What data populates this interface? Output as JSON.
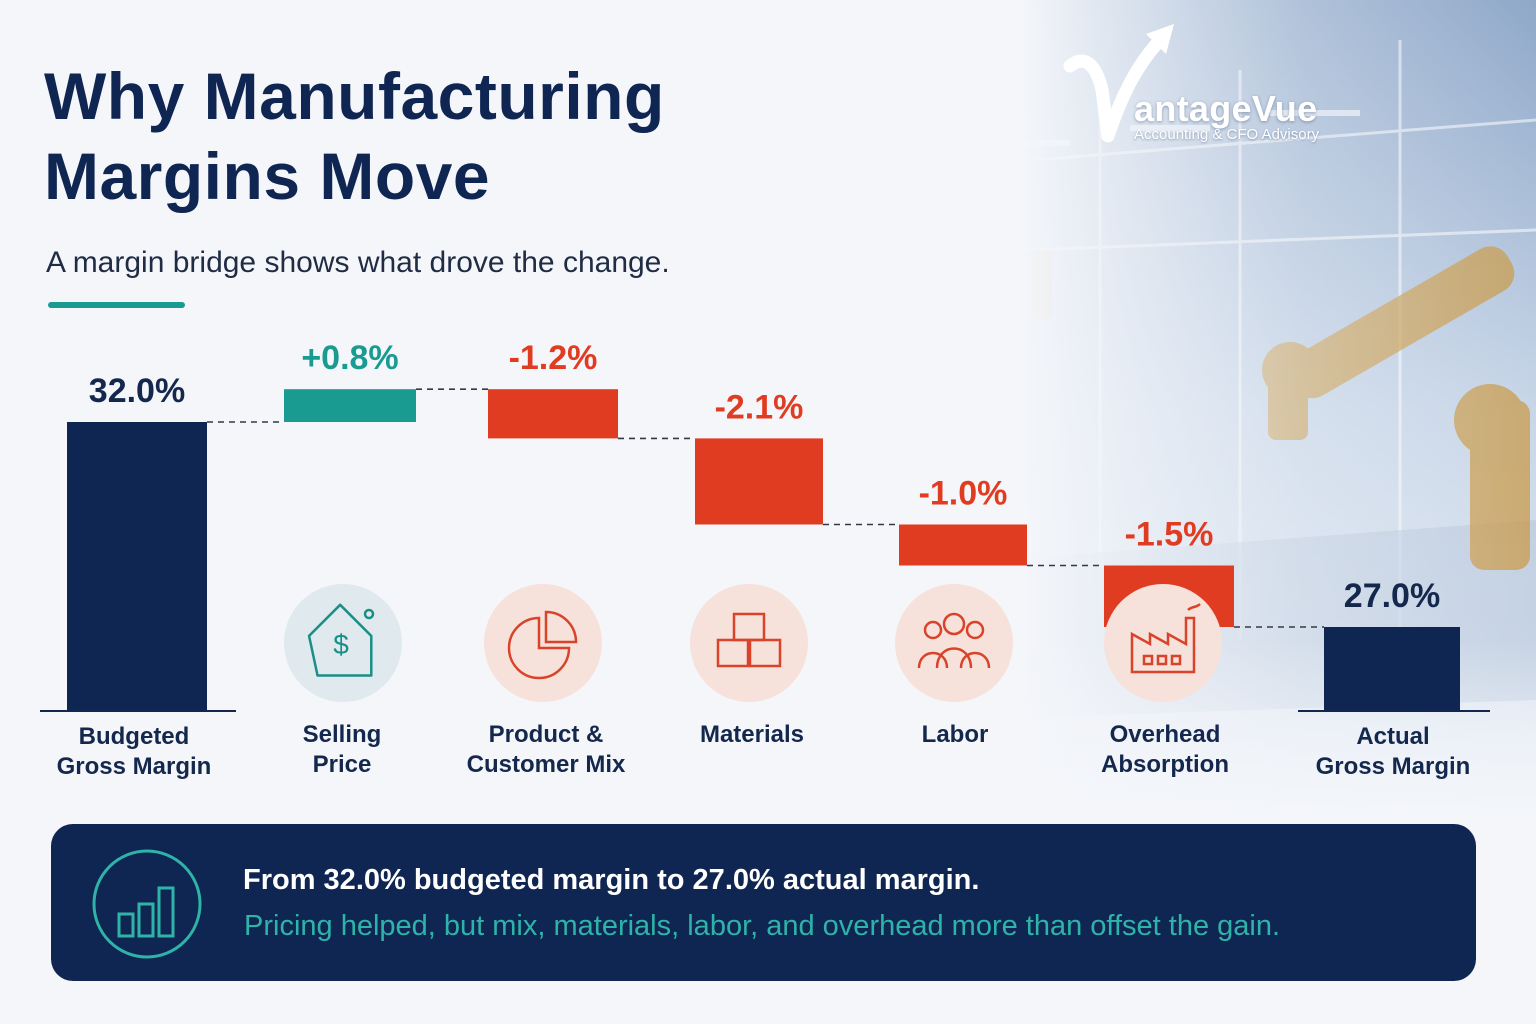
{
  "header": {
    "title_line1": "Why Manufacturing",
    "title_line2": "Margins Move",
    "subtitle": "A margin bridge shows what drove the change."
  },
  "brand": {
    "name": "antageVue",
    "tagline": "Accounting & CFO Advisory",
    "logo_lettering": "V"
  },
  "colors": {
    "navy": "#0f2552",
    "teal": "#1a9b92",
    "red": "#e03c22"
  },
  "chart_data": {
    "type": "waterfall",
    "unit": "%",
    "title": "",
    "ylim": [
      0,
      33
    ],
    "categories": [
      "Budgeted\nGross Margin",
      "Selling\nPrice",
      "Product &\nCustomer Mix",
      "Materials",
      "Labor",
      "Overhead\nAbsorption",
      "Actual\nGross Margin"
    ],
    "steps": [
      {
        "kind": "total",
        "value": 32.0,
        "label": "32.0%",
        "color": "#0f2552",
        "icon": ""
      },
      {
        "kind": "delta",
        "value": 0.8,
        "label": "+0.8%",
        "color": "#1a9b92",
        "icon": "price-tag-icon"
      },
      {
        "kind": "delta",
        "value": -1.2,
        "label": "-1.2%",
        "color": "#e03c22",
        "icon": "pie-chart-icon"
      },
      {
        "kind": "delta",
        "value": -2.1,
        "label": "-2.1%",
        "color": "#e03c22",
        "icon": "boxes-icon"
      },
      {
        "kind": "delta",
        "value": -1.0,
        "label": "-1.0%",
        "color": "#e03c22",
        "icon": "people-icon"
      },
      {
        "kind": "delta",
        "value": -1.5,
        "label": "-1.5%",
        "color": "#e03c22",
        "icon": "factory-icon"
      },
      {
        "kind": "total",
        "value": 27.0,
        "label": "27.0%",
        "color": "#0f2552",
        "icon": ""
      }
    ]
  },
  "summary": {
    "headline": "From 32.0% budgeted margin to 27.0% actual margin.",
    "detail": "Pricing helped, but mix, materials, labor, and overhead more than offset the gain.",
    "icon": "bar-chart-icon"
  }
}
